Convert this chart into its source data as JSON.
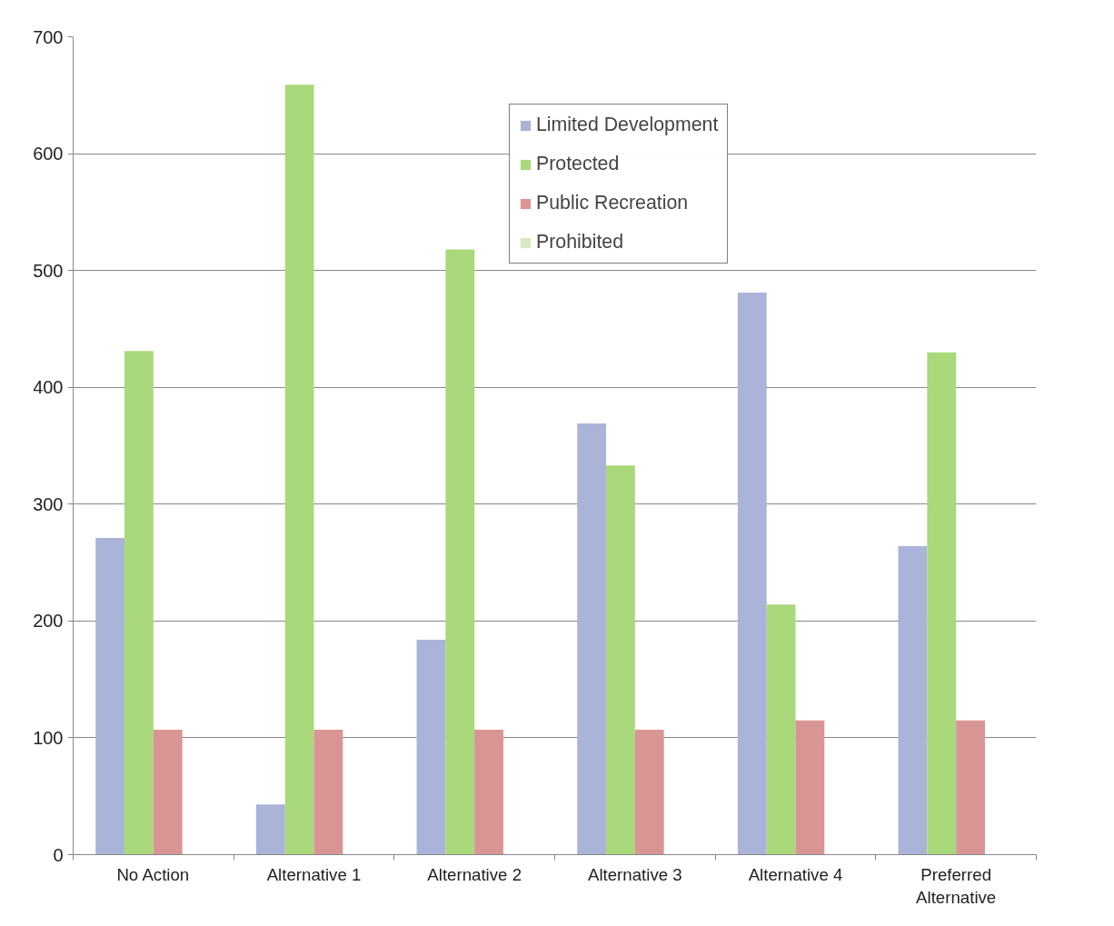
{
  "chart_data": {
    "type": "bar",
    "categories": [
      "No Action",
      "Alternative 1",
      "Alternative 2",
      "Alternative 3",
      "Alternative 4",
      "Preferred Alternative"
    ],
    "series": [
      {
        "name": "Limited Development",
        "color": "#aab4d8",
        "values": [
          271,
          43,
          184,
          369,
          481,
          264
        ]
      },
      {
        "name": "Protected",
        "color": "#a9d97a",
        "values": [
          431,
          659,
          518,
          333,
          214,
          430
        ]
      },
      {
        "name": "Public Recreation",
        "color": "#d99594",
        "values": [
          107,
          107,
          107,
          107,
          115,
          115
        ]
      },
      {
        "name": "Prohibited",
        "color": "#d6e8c4",
        "values": [
          0,
          0,
          0,
          0,
          0,
          0
        ]
      }
    ],
    "ylim": [
      0,
      700
    ],
    "yticks": [
      0,
      100,
      200,
      300,
      400,
      500,
      600,
      700
    ],
    "grid": "y",
    "legend": "top"
  }
}
